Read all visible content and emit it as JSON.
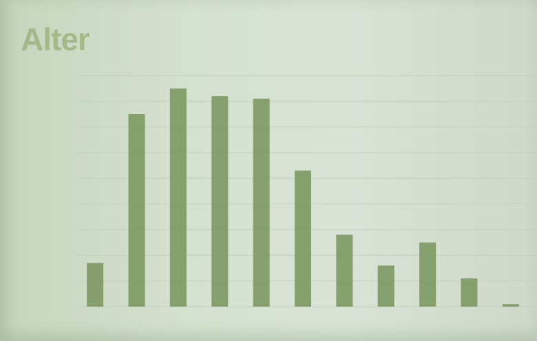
{
  "title": "Alter",
  "chart_data": {
    "type": "bar",
    "title": "Alter",
    "xlabel": "",
    "ylabel": "",
    "categories": [
      "",
      "",
      "",
      "",
      "",
      "",
      "",
      "",
      "",
      "",
      ""
    ],
    "values": [
      17,
      75,
      85,
      82,
      81,
      53,
      28,
      16,
      25,
      11,
      1
    ],
    "ylim": [
      0,
      90
    ],
    "grid": true,
    "bar_color": "#7f9a64"
  }
}
